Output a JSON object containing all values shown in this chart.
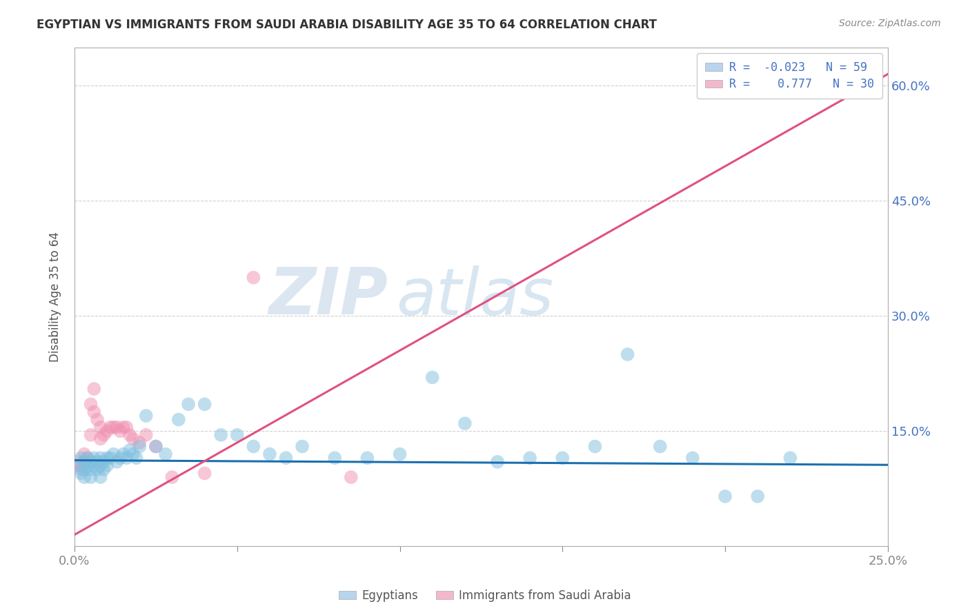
{
  "title": "EGYPTIAN VS IMMIGRANTS FROM SAUDI ARABIA DISABILITY AGE 35 TO 64 CORRELATION CHART",
  "source_text": "Source: ZipAtlas.com",
  "ylabel": "Disability Age 35 to 64",
  "xlim": [
    0.0,
    0.25
  ],
  "ylim": [
    0.0,
    0.65
  ],
  "xtick_labels": [
    "0.0%",
    "25.0%"
  ],
  "ytick_labels": [
    "15.0%",
    "30.0%",
    "45.0%",
    "60.0%"
  ],
  "ytick_vals": [
    0.15,
    0.3,
    0.45,
    0.6
  ],
  "xtick_vals": [
    0.0,
    0.25
  ],
  "extra_xticks": [
    0.05,
    0.1,
    0.15,
    0.2
  ],
  "blue_scatter_x": [
    0.001,
    0.002,
    0.002,
    0.003,
    0.003,
    0.004,
    0.004,
    0.005,
    0.005,
    0.006,
    0.006,
    0.007,
    0.007,
    0.008,
    0.008,
    0.009,
    0.009,
    0.01,
    0.01,
    0.011,
    0.012,
    0.013,
    0.014,
    0.015,
    0.016,
    0.017,
    0.018,
    0.019,
    0.02,
    0.022,
    0.025,
    0.028,
    0.032,
    0.035,
    0.04,
    0.045,
    0.05,
    0.055,
    0.06,
    0.065,
    0.07,
    0.08,
    0.09,
    0.1,
    0.11,
    0.12,
    0.13,
    0.14,
    0.15,
    0.16,
    0.17,
    0.18,
    0.19,
    0.2,
    0.21,
    0.22,
    0.003,
    0.005,
    0.008
  ],
  "blue_scatter_y": [
    0.105,
    0.115,
    0.095,
    0.11,
    0.1,
    0.115,
    0.105,
    0.11,
    0.1,
    0.115,
    0.105,
    0.11,
    0.1,
    0.115,
    0.105,
    0.11,
    0.1,
    0.115,
    0.105,
    0.115,
    0.12,
    0.11,
    0.115,
    0.12,
    0.115,
    0.125,
    0.12,
    0.115,
    0.13,
    0.17,
    0.13,
    0.12,
    0.165,
    0.185,
    0.185,
    0.145,
    0.145,
    0.13,
    0.12,
    0.115,
    0.13,
    0.115,
    0.115,
    0.12,
    0.22,
    0.16,
    0.11,
    0.115,
    0.115,
    0.13,
    0.25,
    0.13,
    0.115,
    0.065,
    0.065,
    0.115,
    0.09,
    0.09,
    0.09
  ],
  "pink_scatter_x": [
    0.001,
    0.002,
    0.002,
    0.003,
    0.003,
    0.004,
    0.005,
    0.005,
    0.006,
    0.006,
    0.007,
    0.008,
    0.008,
    0.009,
    0.01,
    0.011,
    0.012,
    0.013,
    0.014,
    0.015,
    0.016,
    0.017,
    0.018,
    0.02,
    0.022,
    0.025,
    0.03,
    0.04,
    0.055,
    0.085
  ],
  "pink_scatter_y": [
    0.11,
    0.105,
    0.1,
    0.12,
    0.11,
    0.115,
    0.185,
    0.145,
    0.205,
    0.175,
    0.165,
    0.155,
    0.14,
    0.145,
    0.15,
    0.155,
    0.155,
    0.155,
    0.15,
    0.155,
    0.155,
    0.145,
    0.14,
    0.135,
    0.145,
    0.13,
    0.09,
    0.095,
    0.35,
    0.09
  ],
  "blue_line_x": [
    0.0,
    0.25
  ],
  "blue_line_y": [
    0.112,
    0.106
  ],
  "pink_line_x": [
    0.0,
    0.25
  ],
  "pink_line_y": [
    0.015,
    0.615
  ],
  "watermark_zip": "ZIP",
  "watermark_atlas": "atlas",
  "grid_color": "#d0d0d0",
  "bg_color": "#ffffff",
  "title_color": "#333333",
  "blue_dot_color": "#7fbfdf",
  "pink_dot_color": "#f090b0",
  "blue_line_color": "#1a6faf",
  "pink_line_color": "#e05080",
  "right_axis_color": "#4472c4",
  "legend_blue_fill": "#b8d4ee",
  "legend_pink_fill": "#f4b8cc"
}
